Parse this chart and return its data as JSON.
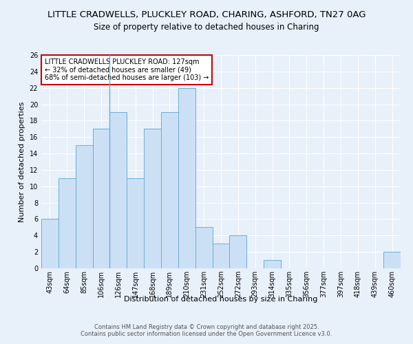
{
  "title1": "LITTLE CRADWELLS, PLUCKLEY ROAD, CHARING, ASHFORD, TN27 0AG",
  "title2": "Size of property relative to detached houses in Charing",
  "xlabel": "Distribution of detached houses by size in Charing",
  "ylabel": "Number of detached properties",
  "bin_labels": [
    "43sqm",
    "64sqm",
    "85sqm",
    "106sqm",
    "126sqm",
    "147sqm",
    "168sqm",
    "189sqm",
    "210sqm",
    "231sqm",
    "252sqm",
    "272sqm",
    "293sqm",
    "314sqm",
    "335sqm",
    "356sqm",
    "377sqm",
    "397sqm",
    "418sqm",
    "439sqm",
    "460sqm"
  ],
  "bar_heights": [
    6,
    11,
    15,
    17,
    19,
    11,
    17,
    19,
    22,
    5,
    3,
    4,
    0,
    1,
    0,
    0,
    0,
    0,
    0,
    0,
    2
  ],
  "bar_color": "#cce0f5",
  "bar_edge_color": "#6aaed6",
  "background_color": "#e8f0fa",
  "grid_color": "#ffffff",
  "property_bin_index": 4,
  "annotation_text": "LITTLE CRADWELLS PLUCKLEY ROAD: 127sqm\n← 32% of detached houses are smaller (49)\n68% of semi-detached houses are larger (103) →",
  "annotation_box_color": "#ffffff",
  "annotation_border_color": "#cc0000",
  "footer_text": "Contains HM Land Registry data © Crown copyright and database right 2025.\nContains public sector information licensed under the Open Government Licence v3.0.",
  "ylim": [
    0,
    26
  ],
  "yticks": [
    0,
    2,
    4,
    6,
    8,
    10,
    12,
    14,
    16,
    18,
    20,
    22,
    24,
    26
  ],
  "title_fontsize": 9.5,
  "subtitle_fontsize": 8.5,
  "axis_label_fontsize": 8,
  "tick_fontsize": 7,
  "footer_fontsize": 6,
  "annot_fontsize": 7
}
